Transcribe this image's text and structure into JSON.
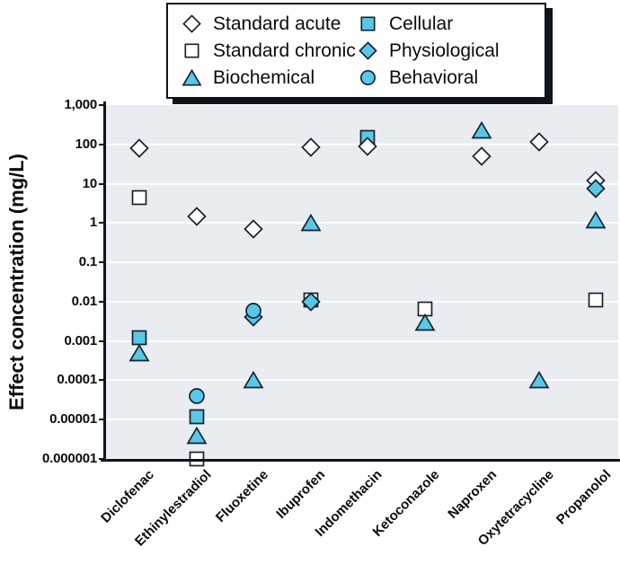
{
  "legend": {
    "items": [
      {
        "label": "Standard acute",
        "marker": "diamond-open"
      },
      {
        "label": "Standard chronic",
        "marker": "square-open"
      },
      {
        "label": "Biochemical",
        "marker": "triangle-filled"
      },
      {
        "label": "Cellular",
        "marker": "square-filled"
      },
      {
        "label": "Physiological",
        "marker": "diamond-filled"
      },
      {
        "label": "Behavioral",
        "marker": "circle-filled"
      }
    ]
  },
  "chart_data": {
    "type": "scatter",
    "title": "",
    "xlabel": "",
    "ylabel": "Effect concentration (mg/L)",
    "yscale": "log",
    "ylim": [
      1e-06,
      1000
    ],
    "grid": "horizontal-white-on-gray",
    "legend_position": "top",
    "ytick_labels": [
      "1,000",
      "100",
      "10",
      "1",
      "0.1",
      "0.01",
      "0.001",
      "0.0001",
      "0.00001",
      "0.000001"
    ],
    "categories": [
      "Diclofenac",
      "Ethinylestradiol",
      "Fluoxetine",
      "Ibuprofen",
      "Indomethacin",
      "Ketoconazole",
      "Naproxen",
      "Oxytetracycline",
      "Propanolol"
    ],
    "series": [
      {
        "name": "Standard acute",
        "marker": "diamond-open",
        "points": [
          {
            "category": "Diclofenac",
            "value": 80
          },
          {
            "category": "Ethinylestradiol",
            "value": 1.5
          },
          {
            "category": "Fluoxetine",
            "value": 0.7
          },
          {
            "category": "Ibuprofen",
            "value": 85
          },
          {
            "category": "Indomethacin",
            "value": 90
          },
          {
            "category": "Naproxen",
            "value": 50
          },
          {
            "category": "Oxytetracycline",
            "value": 115
          },
          {
            "category": "Propanolol",
            "value": 12
          }
        ]
      },
      {
        "name": "Standard chronic",
        "marker": "square-open",
        "points": [
          {
            "category": "Diclofenac",
            "value": 4.5
          },
          {
            "category": "Ethinylestradiol",
            "value": 1e-06
          },
          {
            "category": "Ibuprofen",
            "value": 0.011
          },
          {
            "category": "Ketoconazole",
            "value": 0.0065
          },
          {
            "category": "Propanolol",
            "value": 0.011
          }
        ]
      },
      {
        "name": "Biochemical",
        "marker": "triangle-filled",
        "points": [
          {
            "category": "Diclofenac",
            "value": 0.0005
          },
          {
            "category": "Ethinylestradiol",
            "value": 4e-06
          },
          {
            "category": "Fluoxetine",
            "value": 0.0001
          },
          {
            "category": "Ibuprofen",
            "value": 1.0
          },
          {
            "category": "Ketoconazole",
            "value": 0.003
          },
          {
            "category": "Naproxen",
            "value": 230
          },
          {
            "category": "Oxytetracycline",
            "value": 0.0001
          },
          {
            "category": "Propanolol",
            "value": 1.2
          }
        ]
      },
      {
        "name": "Cellular",
        "marker": "square-filled",
        "points": [
          {
            "category": "Diclofenac",
            "value": 0.0012
          },
          {
            "category": "Ethinylestradiol",
            "value": 1.2e-05
          },
          {
            "category": "Indomethacin",
            "value": 150
          }
        ]
      },
      {
        "name": "Physiological",
        "marker": "diamond-filled",
        "points": [
          {
            "category": "Fluoxetine",
            "value": 0.004
          },
          {
            "category": "Ibuprofen",
            "value": 0.01
          },
          {
            "category": "Propanolol",
            "value": 7.5
          }
        ]
      },
      {
        "name": "Behavioral",
        "marker": "circle-filled",
        "points": [
          {
            "category": "Ethinylestradiol",
            "value": 4e-05
          },
          {
            "category": "Fluoxetine",
            "value": 0.006
          }
        ]
      }
    ],
    "draw_order": [
      1,
      3,
      2,
      0,
      4,
      5
    ],
    "colors": {
      "marker_fill": "#58c7e8",
      "marker_open_fill": "#ffffff",
      "marker_outline": "#16222d",
      "plot_background": "#e9edf2",
      "grid_line": "#ffffff",
      "axis": "#0d141c",
      "text": "#0b0b0b"
    }
  }
}
